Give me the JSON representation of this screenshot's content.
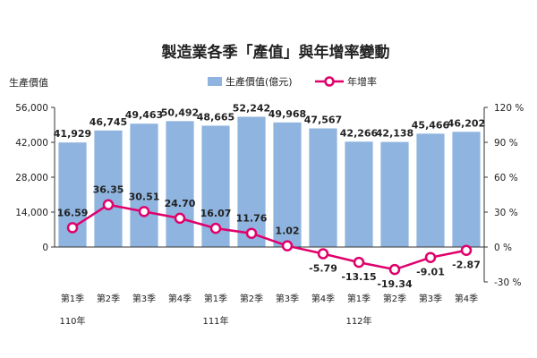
{
  "chart_data": {
    "type": "bar",
    "title": "製造業各季「產值」與年增率變動",
    "ylabel_left": "生產價值",
    "categories": [
      "第1季",
      "第2季",
      "第3季",
      "第4季",
      "第1季",
      "第2季",
      "第3季",
      "第4季",
      "第1季",
      "第2季",
      "第3季",
      "第4季"
    ],
    "year_labels": [
      {
        "index": 0,
        "label": "110年"
      },
      {
        "index": 4,
        "label": "111年"
      },
      {
        "index": 8,
        "label": "112年"
      }
    ],
    "series": [
      {
        "name": "生產價值(億元)",
        "type": "bar",
        "axis": "left",
        "color": "#8fb4df",
        "values": [
          41929,
          46745,
          49463,
          50492,
          48665,
          52242,
          49968,
          47567,
          42266,
          42138,
          45466,
          46202
        ],
        "labels": [
          "41,929",
          "46,745",
          "49,463",
          "50,492",
          "48,665",
          "52,242",
          "49,968",
          "47,567",
          "42,266",
          "42,138",
          "45,466",
          "46,202"
        ]
      },
      {
        "name": "年增率",
        "type": "line",
        "axis": "right",
        "color": "#e0006b",
        "values": [
          16.59,
          36.35,
          30.51,
          24.7,
          16.07,
          11.76,
          1.02,
          -5.79,
          -13.15,
          -19.34,
          -9.01,
          -2.87
        ],
        "labels": [
          "16.59",
          "36.35",
          "30.51",
          "24.70",
          "16.07",
          "11.76",
          "1.02",
          "-5.79",
          "-13.15",
          "-19.34",
          "-9.01",
          "-2.87"
        ]
      }
    ],
    "left_axis": {
      "ylim": [
        0,
        56000
      ],
      "ticks": [
        0,
        14000,
        28000,
        42000,
        56000
      ],
      "tick_labels": [
        "0",
        "14,000",
        "28,000",
        "42,000",
        "56,000"
      ]
    },
    "right_axis": {
      "ylim": [
        -30,
        120
      ],
      "ticks": [
        -30,
        0,
        30,
        60,
        90,
        120
      ],
      "tick_labels": [
        "-30 %",
        "0 %",
        "30 %",
        "60 %",
        "90 %",
        "120 %"
      ]
    },
    "legend": {
      "placement": "top-right"
    },
    "grid": false
  }
}
